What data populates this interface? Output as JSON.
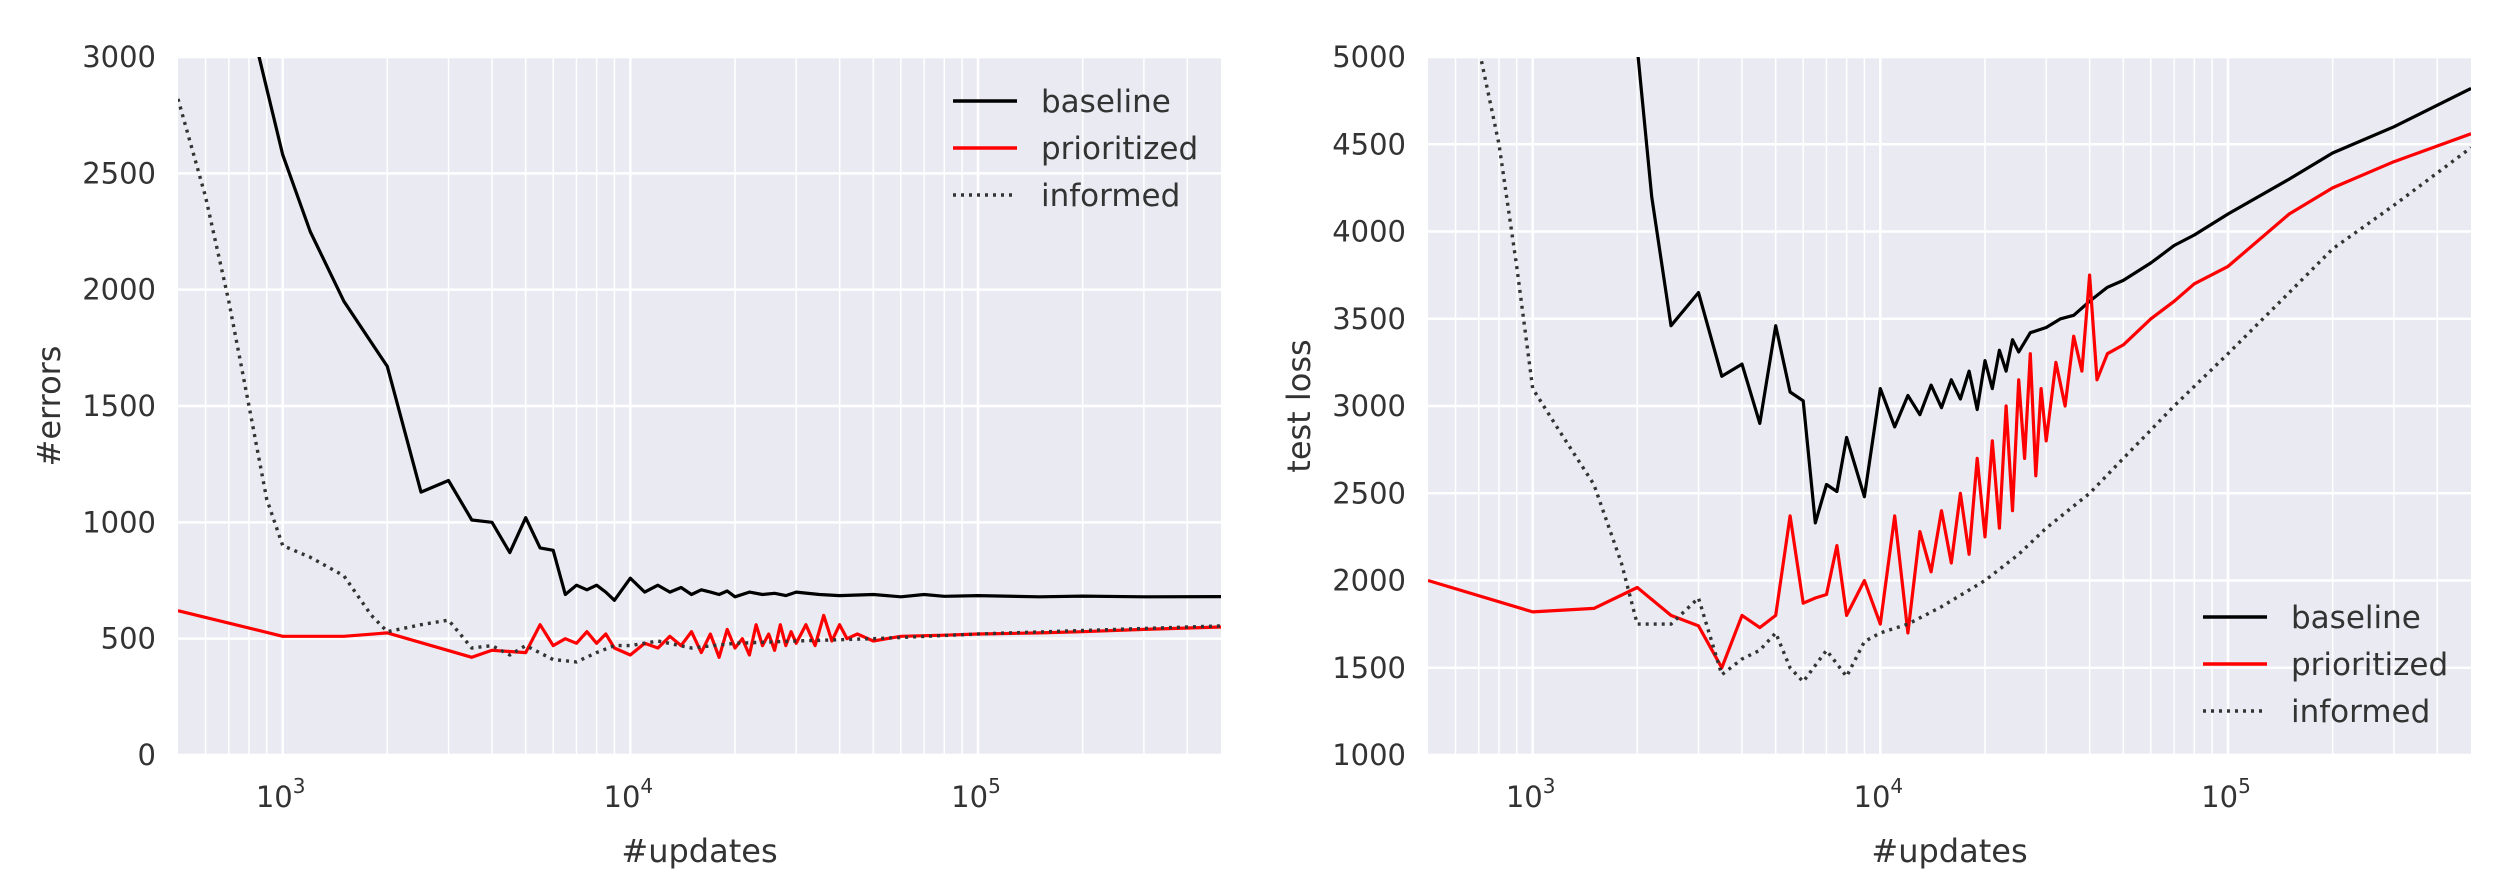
{
  "colors": {
    "panel_bg": "#eaeaf2",
    "grid": "#ffffff",
    "baseline": "#000000",
    "prioritized": "#ff0000",
    "informed": "#333333"
  },
  "chart_data": [
    {
      "type": "line",
      "xlabel": "#updates",
      "ylabel": "#errors",
      "xscale": "log",
      "xlim": [
        500,
        500000
      ],
      "ylim": [
        0,
        3000
      ],
      "xtick_labels": [
        {
          "base": "10",
          "exp": "3",
          "value": 1000
        },
        {
          "base": "10",
          "exp": "4",
          "value": 10000
        },
        {
          "base": "10",
          "exp": "5",
          "value": 100000
        }
      ],
      "yticks": [
        0,
        500,
        1000,
        1500,
        2000,
        2500,
        3000
      ],
      "grid": true,
      "legend_position": "top-right",
      "legend": [
        "baseline",
        "prioritized",
        "informed"
      ],
      "series": [
        {
          "name": "baseline",
          "style": "solid",
          "x": [
            840,
            1000,
            1200,
            1500,
            2000,
            2500,
            3000,
            3500,
            4000,
            4500,
            5000,
            5500,
            6000,
            6500,
            7000,
            7500,
            8000,
            8500,
            9000,
            10000,
            11000,
            12000,
            13000,
            14000,
            15000,
            16000,
            17000,
            18000,
            19000,
            20000,
            22000,
            24000,
            26000,
            28000,
            30000,
            35000,
            40000,
            50000,
            60000,
            70000,
            80000,
            100000,
            150000,
            200000,
            300000,
            500000
          ],
          "y": [
            3050,
            2580,
            2250,
            1950,
            1670,
            1130,
            1180,
            1010,
            1000,
            870,
            1020,
            890,
            880,
            690,
            730,
            710,
            730,
            700,
            665,
            760,
            700,
            730,
            700,
            720,
            690,
            710,
            700,
            690,
            705,
            680,
            700,
            690,
            695,
            685,
            700,
            690,
            685,
            690,
            680,
            690,
            682,
            685,
            680,
            683,
            680,
            681
          ]
        },
        {
          "name": "prioritized",
          "style": "solid",
          "x": [
            500,
            1000,
            1500,
            2000,
            3500,
            4000,
            5000,
            5500,
            6000,
            6500,
            7000,
            7500,
            8000,
            8500,
            9000,
            10000,
            11000,
            12000,
            13000,
            14000,
            15000,
            16000,
            17000,
            18000,
            19000,
            20000,
            21000,
            22000,
            23000,
            24000,
            25000,
            26000,
            27000,
            28000,
            29000,
            30000,
            32000,
            34000,
            36000,
            38000,
            40000,
            42000,
            45000,
            50000,
            60000,
            80000,
            100000,
            150000,
            200000,
            300000,
            500000
          ],
          "y": [
            620,
            510,
            510,
            525,
            420,
            450,
            440,
            560,
            470,
            500,
            480,
            530,
            480,
            520,
            460,
            430,
            480,
            460,
            510,
            470,
            530,
            440,
            520,
            420,
            540,
            460,
            500,
            430,
            560,
            470,
            520,
            450,
            560,
            470,
            530,
            480,
            560,
            470,
            600,
            490,
            560,
            500,
            520,
            490,
            510,
            515,
            520,
            525,
            530,
            540,
            550
          ]
        },
        {
          "name": "informed",
          "style": "dotted",
          "x": [
            500,
            600,
            700,
            800,
            900,
            1000,
            1200,
            1500,
            1800,
            2000,
            2500,
            3000,
            3500,
            4000,
            4500,
            5000,
            6000,
            7000,
            8000,
            9000,
            10000,
            12000,
            15000,
            20000,
            30000,
            50000,
            100000,
            200000,
            500000
          ],
          "y": [
            2820,
            2400,
            1950,
            1500,
            1100,
            900,
            850,
            770,
            600,
            530,
            560,
            580,
            460,
            470,
            430,
            470,
            410,
            400,
            440,
            470,
            470,
            490,
            460,
            480,
            490,
            500,
            520,
            535,
            555
          ]
        }
      ]
    },
    {
      "type": "line",
      "xlabel": "#updates",
      "ylabel": "test loss",
      "xscale": "log",
      "xlim": [
        500,
        500000
      ],
      "ylim": [
        1000,
        5000
      ],
      "xtick_labels": [
        {
          "base": "10",
          "exp": "3",
          "value": 1000
        },
        {
          "base": "10",
          "exp": "4",
          "value": 10000
        },
        {
          "base": "10",
          "exp": "5",
          "value": 100000
        }
      ],
      "yticks": [
        1000,
        1500,
        2000,
        2500,
        3000,
        3500,
        4000,
        4500,
        5000
      ],
      "grid": true,
      "legend_position": "bottom-right",
      "legend": [
        "baseline",
        "prioritized",
        "informed"
      ],
      "series": [
        {
          "name": "baseline",
          "style": "solid",
          "x": [
            2000,
            2200,
            2500,
            3000,
            3500,
            4000,
            4500,
            5000,
            5500,
            6000,
            6500,
            7000,
            7500,
            8000,
            9000,
            10000,
            11000,
            12000,
            13000,
            14000,
            15000,
            16000,
            17000,
            18000,
            19000,
            20000,
            21000,
            22000,
            23000,
            24000,
            25000,
            27000,
            30000,
            33000,
            36000,
            40000,
            45000,
            50000,
            60000,
            70000,
            80000,
            100000,
            150000,
            200000,
            300000,
            500000
          ],
          "y": [
            5050,
            4200,
            3460,
            3650,
            3170,
            3240,
            2900,
            3460,
            3080,
            3030,
            2330,
            2550,
            2510,
            2820,
            2480,
            3100,
            2880,
            3060,
            2950,
            3120,
            2990,
            3150,
            3040,
            3200,
            2980,
            3260,
            3100,
            3320,
            3200,
            3380,
            3310,
            3420,
            3450,
            3500,
            3520,
            3600,
            3680,
            3720,
            3820,
            3920,
            3980,
            4100,
            4300,
            4450,
            4600,
            4820
          ]
        },
        {
          "name": "prioritized",
          "style": "solid",
          "x": [
            500,
            1000,
            1500,
            2000,
            2500,
            3000,
            3500,
            4000,
            4500,
            5000,
            5500,
            6000,
            6500,
            7000,
            7500,
            8000,
            9000,
            10000,
            11000,
            12000,
            13000,
            14000,
            15000,
            16000,
            17000,
            18000,
            19000,
            20000,
            21000,
            22000,
            23000,
            24000,
            25000,
            26000,
            27000,
            28000,
            29000,
            30000,
            32000,
            34000,
            36000,
            38000,
            40000,
            42000,
            45000,
            50000,
            60000,
            70000,
            80000,
            100000,
            150000,
            200000,
            300000,
            500000
          ],
          "y": [
            2000,
            1820,
            1840,
            1960,
            1800,
            1740,
            1500,
            1800,
            1730,
            1800,
            2370,
            1870,
            1900,
            1920,
            2200,
            1800,
            2000,
            1750,
            2370,
            1700,
            2280,
            2050,
            2400,
            2100,
            2500,
            2150,
            2700,
            2250,
            2800,
            2300,
            3000,
            2400,
            3150,
            2700,
            3300,
            2600,
            3100,
            2800,
            3250,
            3000,
            3400,
            3200,
            3750,
            3150,
            3300,
            3350,
            3500,
            3600,
            3700,
            3800,
            4100,
            4250,
            4400,
            4560
          ]
        },
        {
          "name": "informed",
          "style": "dotted",
          "x": [
            500,
            700,
            800,
            900,
            1000,
            1200,
            1500,
            1800,
            2000,
            2500,
            3000,
            3500,
            4000,
            4500,
            5000,
            5500,
            6000,
            7000,
            8000,
            9000,
            10000,
            12000,
            15000,
            20000,
            25000,
            30000,
            40000,
            50000,
            70000,
            100000,
            150000,
            200000,
            300000,
            500000
          ],
          "y": [
            5050,
            5050,
            4500,
            3800,
            3100,
            2850,
            2550,
            2100,
            1750,
            1750,
            1900,
            1460,
            1550,
            1600,
            1700,
            1500,
            1420,
            1600,
            1450,
            1650,
            1700,
            1750,
            1850,
            2000,
            2150,
            2300,
            2500,
            2700,
            3000,
            3300,
            3650,
            3900,
            4150,
            4480
          ]
        }
      ]
    }
  ]
}
